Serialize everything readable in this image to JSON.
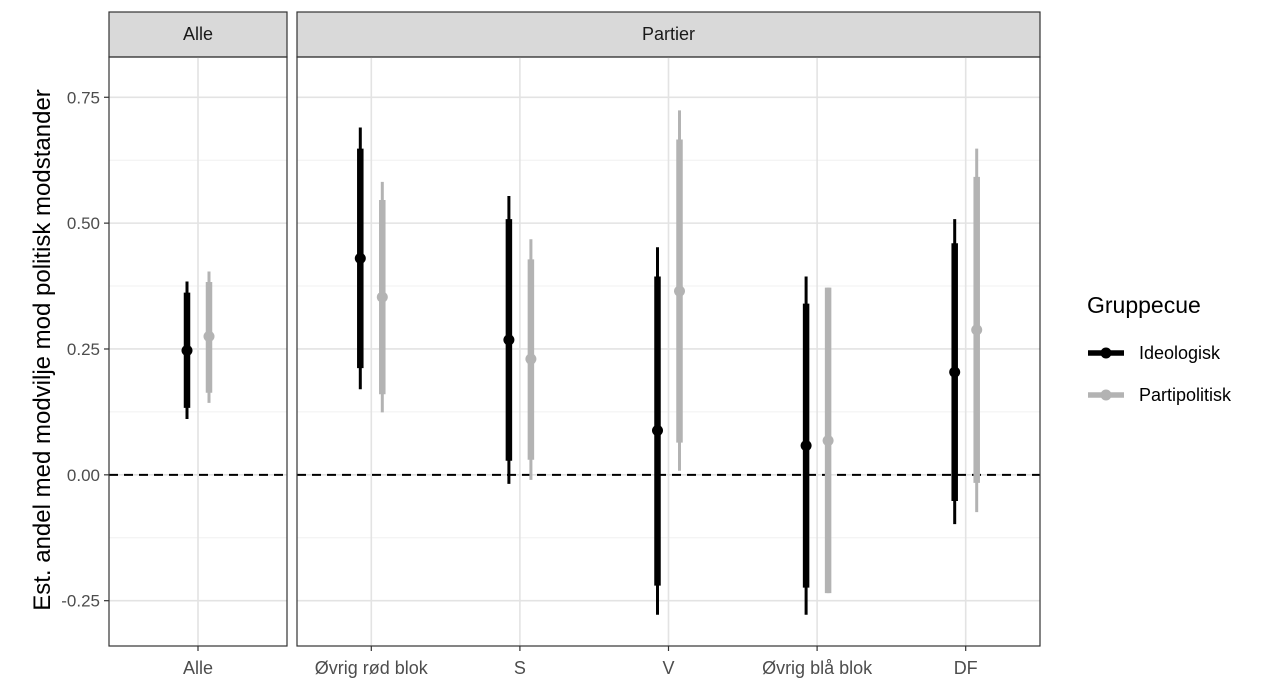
{
  "chart_data": {
    "type": "pointrange",
    "ylabel": "Est. andel med modvilje mod politisk modstander",
    "ylim": [
      -0.34,
      0.83
    ],
    "yticks": [
      -0.25,
      0.0,
      0.25,
      0.5,
      0.75
    ],
    "ytick_labels": [
      "-0.25",
      "0.00",
      "0.25",
      "0.50",
      "0.75"
    ],
    "reference_line": 0,
    "grid": true,
    "legend": {
      "title": "Gruppecue",
      "position": "right",
      "entries": [
        {
          "label": "Ideologisk",
          "color": "#000000"
        },
        {
          "label": "Partipolitisk",
          "color": "#b3b3b3"
        }
      ]
    },
    "panels": [
      {
        "strip": "Alle",
        "categories": [
          "Alle"
        ],
        "series": [
          {
            "name": "Ideologisk",
            "color": "#000000",
            "estimate": [
              0.247
            ],
            "ci_inner": [
              [
                0.133,
                0.362
              ]
            ],
            "ci_outer": [
              [
                0.111,
                0.384
              ]
            ]
          },
          {
            "name": "Partipolitisk",
            "color": "#b3b3b3",
            "estimate": [
              0.275
            ],
            "ci_inner": [
              [
                0.163,
                0.383
              ]
            ],
            "ci_outer": [
              [
                0.143,
                0.404
              ]
            ]
          }
        ]
      },
      {
        "strip": "Partier",
        "categories": [
          "Øvrig rød blok",
          "S",
          "V",
          "Øvrig blå blok",
          "DF"
        ],
        "series": [
          {
            "name": "Ideologisk",
            "color": "#000000",
            "estimate": [
              0.43,
              0.268,
              0.088,
              0.058,
              0.204
            ],
            "ci_inner": [
              [
                0.212,
                0.648
              ],
              [
                0.028,
                0.508
              ],
              [
                -0.22,
                0.394
              ],
              [
                -0.224,
                0.34
              ],
              [
                -0.052,
                0.46
              ]
            ],
            "ci_outer": [
              [
                0.17,
                0.69
              ],
              [
                -0.018,
                0.554
              ],
              [
                -0.278,
                0.452
              ],
              [
                -0.278,
                0.394
              ],
              [
                -0.098,
                0.508
              ]
            ]
          },
          {
            "name": "Partipolitisk",
            "color": "#b3b3b3",
            "estimate": [
              0.353,
              0.23,
              0.365,
              0.068,
              0.288
            ],
            "ci_inner": [
              [
                0.16,
                0.546
              ],
              [
                0.03,
                0.428
              ],
              [
                0.064,
                0.666
              ],
              [
                -0.235,
                0.372
              ],
              [
                -0.016,
                0.592
              ]
            ],
            "ci_outer": [
              [
                0.124,
                0.582
              ],
              [
                -0.01,
                0.468
              ],
              [
                0.008,
                0.724
              ],
              [
                -0.235,
                0.372
              ],
              [
                -0.074,
                0.648
              ]
            ]
          }
        ]
      }
    ]
  }
}
